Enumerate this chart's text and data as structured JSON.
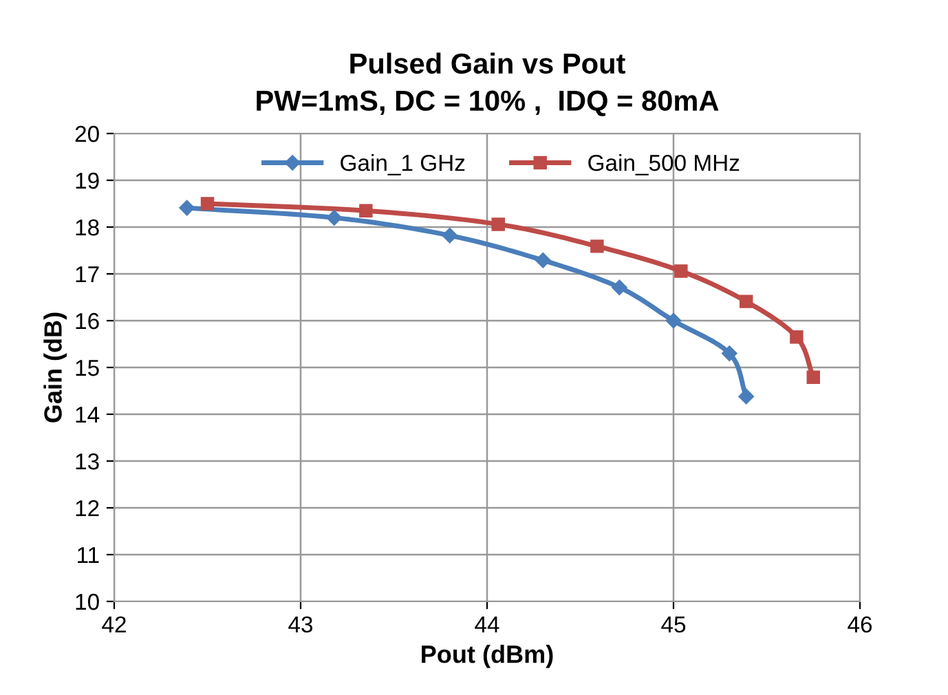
{
  "chart_data": {
    "type": "line",
    "title": "Pulsed Gain vs Pout\nPW=1mS, DC = 10% ,  IDQ = 80mA",
    "xlabel": "Pout (dBm)",
    "ylabel": "Gain (dB)",
    "xlim": [
      42,
      46
    ],
    "xticks": [
      42,
      43,
      44,
      45,
      46
    ],
    "ylim": [
      10,
      20
    ],
    "yticks": [
      10,
      11,
      12,
      13,
      14,
      15,
      16,
      17,
      18,
      19,
      20
    ],
    "grid": true,
    "legend": "top",
    "series": [
      {
        "name": "Gain_1 GHz",
        "color": "#4a7ebb",
        "marker": "diamond",
        "x": [
          42.39,
          43.18,
          43.8,
          44.3,
          44.71,
          45.0,
          45.3,
          45.39
        ],
        "values": [
          18.41,
          18.2,
          17.82,
          17.29,
          16.71,
          16.0,
          15.3,
          14.38
        ]
      },
      {
        "name": "Gain_500 MHz",
        "color": "#be4b48",
        "marker": "square",
        "x": [
          42.5,
          43.35,
          44.06,
          44.59,
          45.04,
          45.39,
          45.66,
          45.75
        ],
        "values": [
          18.5,
          18.35,
          18.06,
          17.59,
          17.06,
          16.41,
          15.65,
          14.79
        ]
      }
    ]
  }
}
